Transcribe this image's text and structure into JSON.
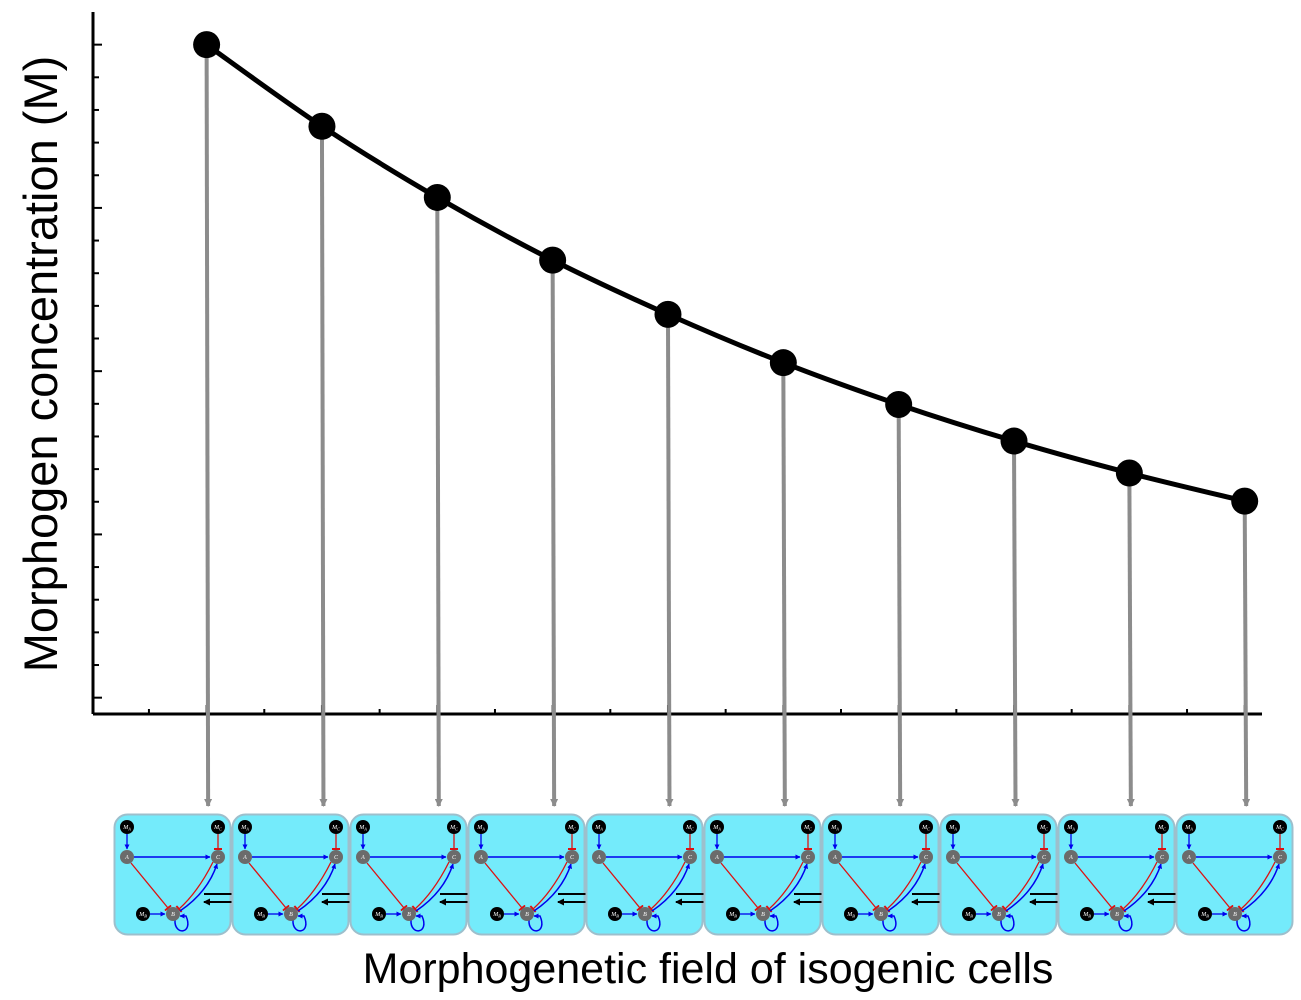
{
  "chart_data": {
    "type": "line",
    "ylabel": "Morphogen concentration (M)",
    "xlabel": "Morphogenetic field of isogenic cells",
    "x": [
      1,
      2,
      3,
      4,
      5,
      6,
      7,
      8,
      9,
      10
    ],
    "values": [
      1.0,
      0.875,
      0.766,
      0.67,
      0.587,
      0.513,
      0.449,
      0.393,
      0.344,
      0.301
    ],
    "ylim": [
      -0.025,
      1.05
    ],
    "xlim": [
      0.015,
      10.15
    ],
    "grid": false,
    "legend": "none",
    "line_color": "#000000",
    "marker_color": "#000000",
    "connector_color": "#8c8c8c"
  },
  "cells": {
    "count": 10,
    "fill_color": "#74ebfb",
    "border_color": "#9dbfcc",
    "activation_color": "#0000ee",
    "inhibition_color": "#dd1111",
    "node_color": "#6b6b6b",
    "morphogen_node_color": "#000000",
    "node_labels": {
      "a": "A",
      "b": "B",
      "c": "C",
      "ma": "M_A",
      "mb": "M_B",
      "mc": "M_C"
    },
    "exchange_symbol": "double-arrow-icon"
  }
}
